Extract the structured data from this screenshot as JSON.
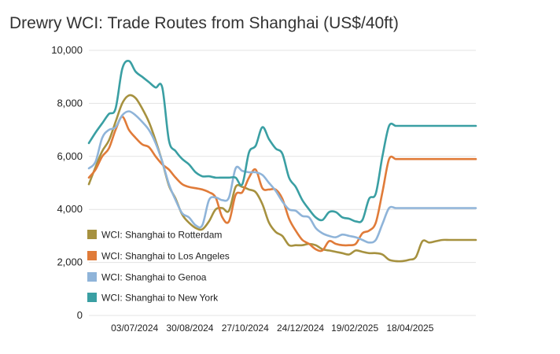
{
  "chart_data": {
    "type": "line",
    "title": "Drewry WCI: Trade Routes from Shanghai (US$/40ft)",
    "xlabel": "",
    "ylabel": "",
    "ylim": [
      0,
      10000
    ],
    "yticks": [
      0,
      2000,
      4000,
      6000,
      8000,
      10000
    ],
    "ytick_labels": [
      "0",
      "2,000",
      "4,000",
      "6,000",
      "8,000",
      "10,000"
    ],
    "xlim": [
      "2024-05-16",
      "2025-06-26"
    ],
    "xticks": [
      "2024-07-03",
      "2024-08-30",
      "2024-10-27",
      "2024-12-24",
      "2025-02-19",
      "2025-04-18"
    ],
    "xtick_labels": [
      "03/07/2024",
      "30/08/2024",
      "27/10/2024",
      "24/12/2024",
      "19/02/2025",
      "18/04/2025"
    ],
    "grid": true,
    "legend_position": "bottom-left",
    "x": [
      "2024-05-16",
      "2024-05-23",
      "2024-05-30",
      "2024-06-06",
      "2024-06-13",
      "2024-06-20",
      "2024-06-27",
      "2024-07-04",
      "2024-07-11",
      "2024-07-18",
      "2024-07-25",
      "2024-08-01",
      "2024-08-08",
      "2024-08-15",
      "2024-08-22",
      "2024-08-29",
      "2024-09-05",
      "2024-09-12",
      "2024-09-19",
      "2024-09-26",
      "2024-10-03",
      "2024-10-10",
      "2024-10-17",
      "2024-10-24",
      "2024-10-31",
      "2024-11-07",
      "2024-11-14",
      "2024-11-21",
      "2024-11-28",
      "2024-12-05",
      "2024-12-12",
      "2024-12-19",
      "2024-12-26",
      "2025-01-02",
      "2025-01-09",
      "2025-01-16",
      "2025-01-23",
      "2025-01-30",
      "2025-02-06",
      "2025-02-13",
      "2025-02-20",
      "2025-02-27",
      "2025-03-06",
      "2025-03-13",
      "2025-03-20",
      "2025-03-27",
      "2025-04-03",
      "2025-04-10",
      "2025-04-17",
      "2025-04-24",
      "2025-05-01",
      "2025-05-08",
      "2025-05-15",
      "2025-05-22",
      "2025-05-29",
      "2025-06-05",
      "2025-06-12",
      "2025-06-19",
      "2025-06-26"
    ],
    "series": [
      {
        "name": "WCI: Shanghai to Rotterdam",
        "color": "#a6913f",
        "values": [
          4950,
          5600,
          6200,
          6600,
          7300,
          8000,
          8300,
          8200,
          7800,
          7300,
          6600,
          5800,
          4900,
          4400,
          3800,
          3500,
          3300,
          3250,
          3550,
          4000,
          4050,
          3950,
          4850,
          4850,
          4750,
          4650,
          4200,
          3500,
          3150,
          3000,
          2650,
          2650,
          2650,
          2700,
          2650,
          2500,
          2450,
          2400,
          2350,
          2300,
          2450,
          2400,
          2350,
          2350,
          2300,
          2100,
          2050,
          2050,
          2100,
          2200,
          2800,
          2750,
          2800,
          2850,
          2850,
          2850,
          2850,
          2850,
          2850
        ]
      },
      {
        "name": "WCI: Shanghai to Los Angeles",
        "color": "#e07b39",
        "values": [
          5200,
          5500,
          6000,
          6300,
          7000,
          7500,
          7000,
          6700,
          6450,
          6350,
          6000,
          5700,
          5500,
          5200,
          4950,
          4850,
          4800,
          4750,
          4650,
          4450,
          3700,
          3550,
          4550,
          4650,
          5200,
          5500,
          4800,
          4750,
          4750,
          4400,
          3650,
          3200,
          2850,
          2700,
          2500,
          2450,
          2800,
          2700,
          2650,
          2650,
          2700,
          3100,
          3200,
          3500,
          4650,
          5900,
          5900,
          5900,
          5900,
          5900,
          5900,
          5900,
          5900,
          5900,
          5900,
          5900,
          5900,
          5900,
          5900
        ]
      },
      {
        "name": "WCI: Shanghai to Genoa",
        "color": "#8fb4d9",
        "values": [
          5550,
          5800,
          6700,
          7000,
          7100,
          7550,
          7700,
          7550,
          7300,
          7000,
          6500,
          5800,
          4950,
          4350,
          3850,
          3700,
          3400,
          3400,
          4350,
          4450,
          4350,
          4450,
          5550,
          5450,
          5400,
          5400,
          5300,
          5000,
          4700,
          4300,
          4000,
          3950,
          3750,
          3700,
          3300,
          3100,
          3000,
          2950,
          3050,
          3000,
          2950,
          2850,
          2750,
          2850,
          3450,
          4050,
          4050,
          4050,
          4050,
          4050,
          4050,
          4050,
          4050,
          4050,
          4050,
          4050,
          4050,
          4050,
          4050
        ]
      },
      {
        "name": "WCI: Shanghai to New York",
        "color": "#3a9fa3",
        "values": [
          6500,
          6900,
          7250,
          7600,
          7800,
          9300,
          9600,
          9200,
          9000,
          8800,
          8600,
          8600,
          6600,
          6200,
          5900,
          5700,
          5400,
          5250,
          5250,
          5200,
          5200,
          5200,
          5200,
          4950,
          6150,
          6400,
          7100,
          6650,
          6300,
          6100,
          5200,
          4850,
          4350,
          4000,
          3700,
          3600,
          3900,
          3900,
          3700,
          3650,
          3550,
          3600,
          4400,
          4600,
          6000,
          7150,
          7150,
          7150,
          7150,
          7150,
          7150,
          7150,
          7150,
          7150,
          7150,
          7150,
          7150,
          7150,
          7150
        ]
      }
    ]
  }
}
